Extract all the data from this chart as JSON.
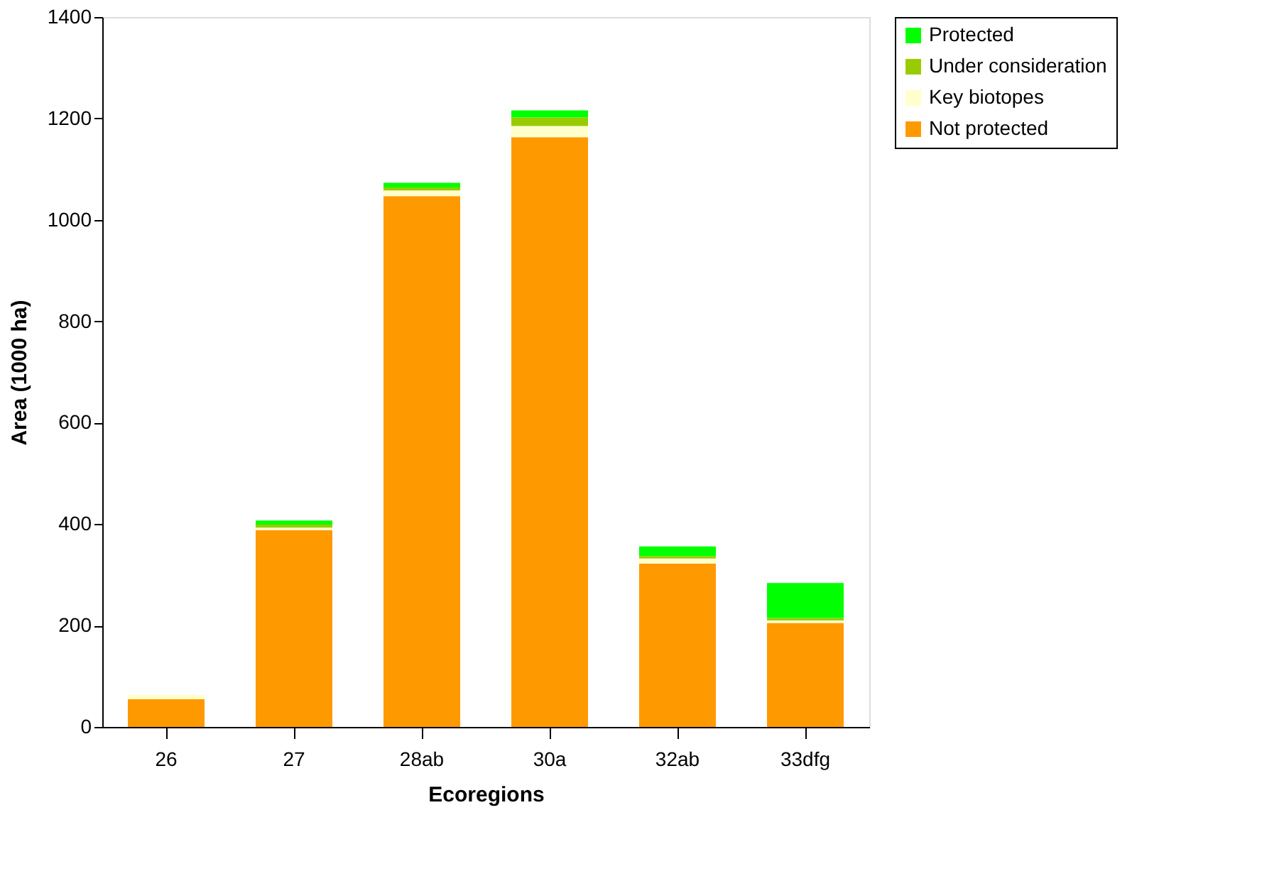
{
  "chart_data": {
    "type": "bar",
    "stacked": true,
    "xlabel": "Ecoregions",
    "ylabel": "Area (1000 ha)",
    "categories": [
      "26",
      "27",
      "28ab",
      "30a",
      "32ab",
      "33dfg"
    ],
    "series": [
      {
        "name": "Not protected",
        "color": "#ff9900",
        "values": [
          55,
          388,
          1047,
          1163,
          322,
          205
        ]
      },
      {
        "name": "Key biotopes",
        "color": "#ffffcc",
        "values": [
          8,
          5,
          11,
          22,
          10,
          5
        ]
      },
      {
        "name": "Under consideration",
        "color": "#99cc00",
        "values": [
          0,
          6,
          6,
          17,
          5,
          5
        ]
      },
      {
        "name": "Protected",
        "color": "#00ff00",
        "values": [
          0,
          8,
          9,
          14,
          19,
          69
        ]
      }
    ],
    "ylim": [
      0,
      1400
    ],
    "yticks": [
      0,
      200,
      400,
      600,
      800,
      1000,
      1200,
      1400
    ],
    "grid": false,
    "legend": "right"
  }
}
